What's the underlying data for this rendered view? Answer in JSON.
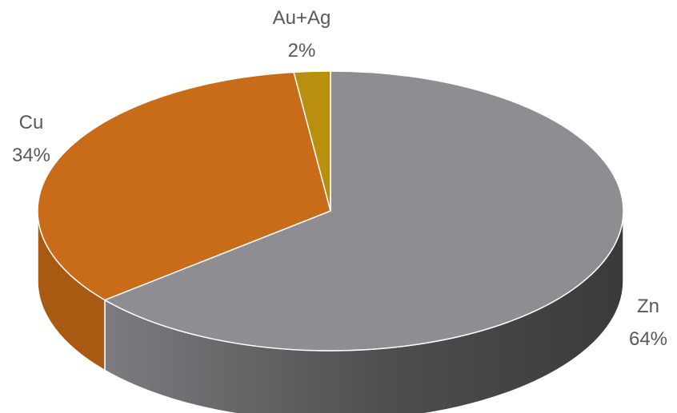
{
  "chart_data": {
    "type": "pie",
    "style": "3d",
    "title": "",
    "slices": [
      {
        "label": "Zn",
        "value": 64,
        "value_label": "64%",
        "color": "#8e8e92",
        "side_color": "#4a4a4c"
      },
      {
        "label": "Cu",
        "value": 34,
        "value_label": "34%",
        "color": "#c96c1a",
        "side_color": "#a85a12"
      },
      {
        "label": "Au+Ag",
        "value": 2,
        "value_label": "2%",
        "color": "#b8900e",
        "side_color": "#8d6d08"
      }
    ]
  }
}
